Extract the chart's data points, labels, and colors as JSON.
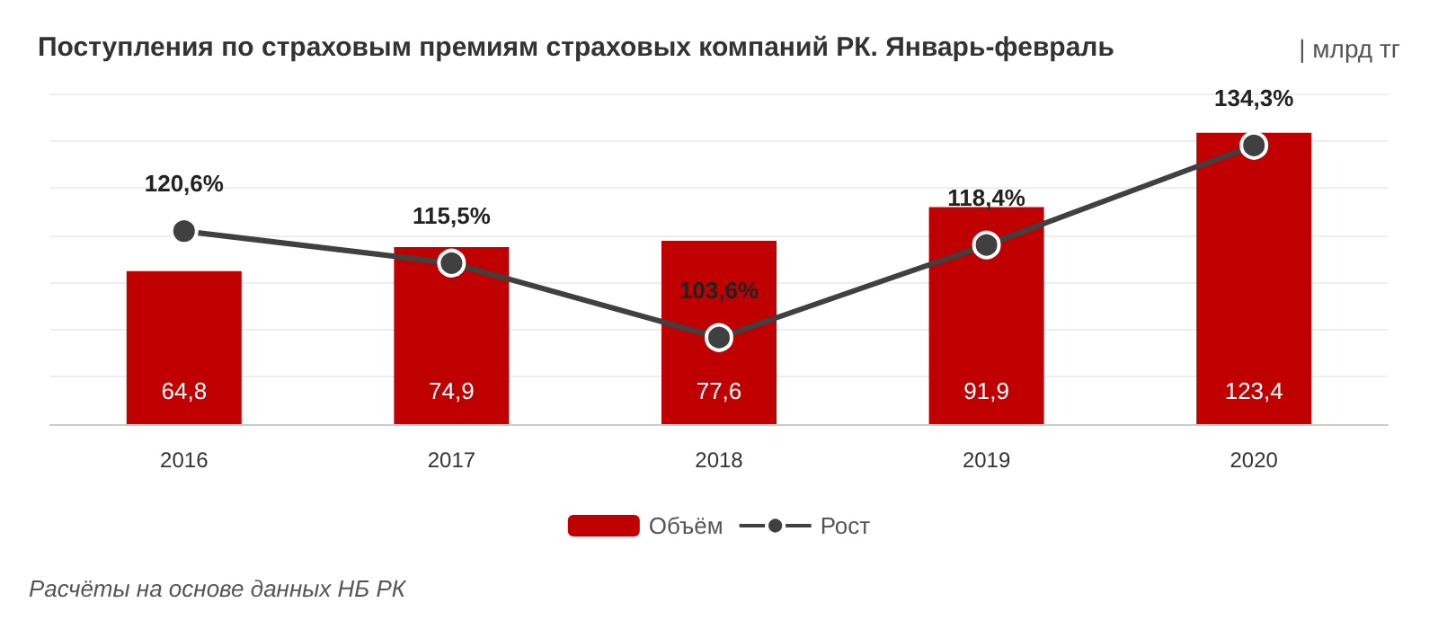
{
  "chart_data": {
    "type": "bar",
    "title": "Поступления по страховым премиям страховых компаний РК. Январь-февраль",
    "subtitle": "| млрд тг",
    "categories": [
      "2016",
      "2017",
      "2018",
      "2019",
      "2020"
    ],
    "series": [
      {
        "name": "Объём",
        "color": "#c00000",
        "values": [
          64.8,
          74.9,
          77.6,
          91.9,
          123.4
        ],
        "value_labels": [
          "64,8",
          "74,9",
          "77,6",
          "91,9",
          "123,4"
        ]
      },
      {
        "name": "Рост",
        "type": "line",
        "axis": "y2",
        "color": "#404040",
        "values": [
          120.6,
          115.5,
          103.6,
          118.4,
          134.3
        ],
        "value_labels": [
          "120,6%",
          "115,5%",
          "103,6%",
          "118,4%",
          "134,3%"
        ]
      }
    ],
    "data_labels": true,
    "grid": "y",
    "legend": "bottom",
    "marker": "circle",
    "line_style": "solid",
    "annotations": [
      "Расчёты на основе данных НБ РК"
    ]
  }
}
